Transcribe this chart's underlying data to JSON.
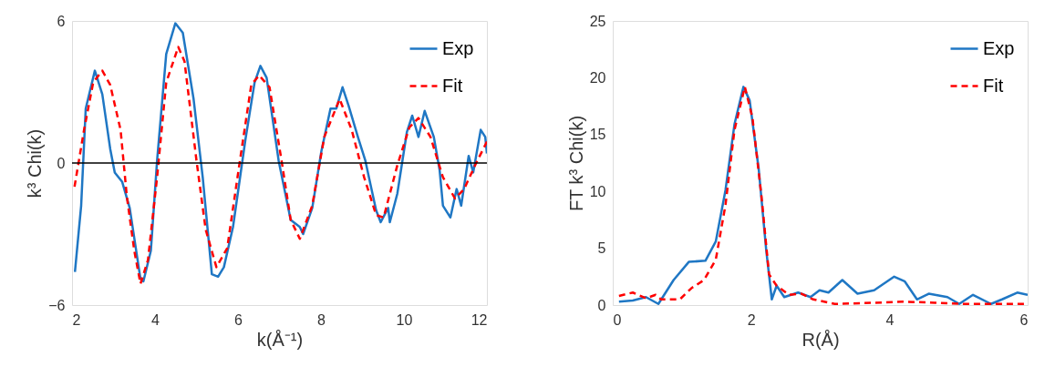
{
  "chart_data": [
    {
      "type": "line",
      "xlabel": "k(Å⁻¹)",
      "ylabel": "k³ Chi(k)",
      "xlim": [
        2,
        12
      ],
      "xticks": [
        2,
        4,
        6,
        8,
        10,
        12
      ],
      "ylim": [
        -6,
        6
      ],
      "yticks": [
        -6,
        0,
        6
      ],
      "grid": false,
      "legend": "top right",
      "ref_lines": [
        {
          "axis": "y",
          "value": 0,
          "color": "#000000"
        }
      ],
      "series": [
        {
          "name": "Exp",
          "color": "#1f77c4",
          "line_style": "solid",
          "x": [
            2.07,
            2.22,
            2.33,
            2.55,
            2.73,
            2.92,
            3.03,
            3.21,
            3.39,
            3.65,
            3.72,
            3.9,
            4.05,
            4.27,
            4.49,
            4.67,
            4.93,
            5.15,
            5.37,
            5.52,
            5.66,
            5.88,
            6.18,
            6.4,
            6.54,
            6.69,
            6.98,
            7.27,
            7.49,
            7.57,
            7.79,
            8.01,
            8.23,
            8.37,
            8.52,
            8.67,
            8.89,
            9.07,
            9.18,
            9.33,
            9.44,
            9.62,
            9.66,
            9.84,
            10.07,
            10.2,
            10.35,
            10.5,
            10.72,
            10.86,
            10.94,
            11.12,
            11.27,
            11.38,
            11.56,
            11.67,
            11.85,
            11.96,
            12.0
          ],
          "values": [
            -4.6,
            -1.8,
            2.3,
            3.9,
            2.9,
            0.6,
            -0.4,
            -0.8,
            -1.9,
            -4.9,
            -5.0,
            -3.7,
            0.1,
            4.6,
            5.9,
            5.5,
            2.7,
            -0.6,
            -4.7,
            -4.8,
            -4.4,
            -2.7,
            1.0,
            3.4,
            4.1,
            3.6,
            0.1,
            -2.4,
            -2.7,
            -3.0,
            -1.9,
            0.5,
            2.3,
            2.3,
            3.2,
            2.4,
            1.1,
            0.1,
            -0.8,
            -2.0,
            -2.5,
            -1.9,
            -2.5,
            -1.3,
            1.3,
            2.0,
            1.1,
            2.2,
            1.1,
            -0.3,
            -1.8,
            -2.3,
            -1.1,
            -1.8,
            0.3,
            -0.4,
            1.4,
            1.1,
            0.4
          ]
        },
        {
          "name": "Fit",
          "color": "#ff0000",
          "line_style": "dashed",
          "x": [
            2.06,
            2.29,
            2.51,
            2.73,
            2.92,
            3.17,
            3.32,
            3.5,
            3.65,
            3.83,
            4.05,
            4.27,
            4.56,
            4.71,
            5.0,
            5.22,
            5.48,
            5.74,
            6.03,
            6.32,
            6.51,
            6.76,
            7.05,
            7.27,
            7.49,
            7.79,
            8.08,
            8.45,
            8.74,
            9.04,
            9.33,
            9.51,
            9.84,
            10.13,
            10.35,
            10.64,
            10.94,
            11.23,
            11.45,
            11.74,
            12.0
          ],
          "values": [
            -1.0,
            1.4,
            3.4,
            3.9,
            3.3,
            1.4,
            -1.4,
            -3.7,
            -5.1,
            -4.1,
            -0.6,
            3.4,
            4.9,
            4.3,
            0.1,
            -2.8,
            -4.4,
            -3.6,
            -0.1,
            3.3,
            3.7,
            3.2,
            0.1,
            -2.4,
            -3.2,
            -1.8,
            1.1,
            2.7,
            1.4,
            -0.6,
            -2.2,
            -2.3,
            -0.1,
            1.5,
            1.9,
            1.1,
            -0.6,
            -1.5,
            -1.1,
            0.0,
            0.9
          ]
        }
      ]
    },
    {
      "type": "line",
      "xlabel": "R(Å)",
      "ylabel": "FT k³ Chi(k)",
      "xlim": [
        0,
        6
      ],
      "xticks": [
        0,
        2,
        4,
        6
      ],
      "ylim": [
        0,
        25
      ],
      "yticks": [
        0,
        5,
        10,
        15,
        20,
        25
      ],
      "grid": false,
      "legend": "top right",
      "series": [
        {
          "name": "Exp",
          "color": "#1f77c4",
          "line_style": "solid",
          "x": [
            0.09,
            0.29,
            0.48,
            0.66,
            0.88,
            1.1,
            1.34,
            1.49,
            1.63,
            1.76,
            1.89,
            1.98,
            2.11,
            2.22,
            2.3,
            2.37,
            2.48,
            2.68,
            2.86,
            2.99,
            3.12,
            3.32,
            3.54,
            3.78,
            4.07,
            4.22,
            4.4,
            4.57,
            4.84,
            5.01,
            5.21,
            5.47,
            5.63,
            5.85,
            6.0
          ],
          "values": [
            0.3,
            0.4,
            0.7,
            0.1,
            2.2,
            3.8,
            3.9,
            5.6,
            10.1,
            15.9,
            19.2,
            18.0,
            12.0,
            4.8,
            0.5,
            1.7,
            0.7,
            1.1,
            0.7,
            1.3,
            1.1,
            2.2,
            1.0,
            1.3,
            2.5,
            2.1,
            0.5,
            1.0,
            0.7,
            0.1,
            0.9,
            0.1,
            0.5,
            1.1,
            0.9
          ]
        },
        {
          "name": "Fit",
          "color": "#ff0000",
          "line_style": "dashed",
          "x": [
            0.09,
            0.29,
            0.48,
            0.62,
            0.7,
            0.97,
            1.14,
            1.32,
            1.49,
            1.63,
            1.76,
            1.91,
            2.02,
            2.15,
            2.26,
            2.37,
            2.55,
            2.73,
            2.9,
            3.21,
            3.78,
            4.22,
            4.66,
            5.1,
            6.0
          ],
          "values": [
            0.8,
            1.1,
            0.6,
            0.9,
            0.5,
            0.5,
            1.5,
            2.2,
            4.0,
            8.8,
            15.4,
            19.2,
            16.5,
            9.6,
            2.7,
            1.7,
            0.9,
            1.0,
            0.5,
            0.1,
            0.2,
            0.3,
            0.2,
            0.1,
            0.1
          ]
        }
      ]
    }
  ]
}
